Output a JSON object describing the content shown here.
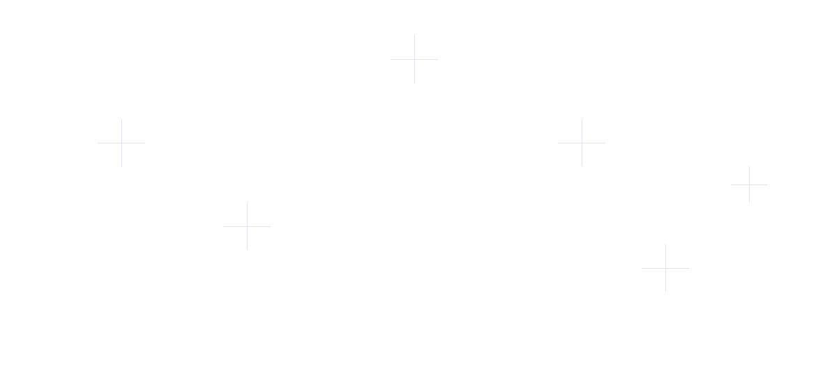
{
  "background_color": "#ffffff",
  "decoration": {
    "icon": "plus-sparkle-icon",
    "color": "#e2e2fb"
  }
}
